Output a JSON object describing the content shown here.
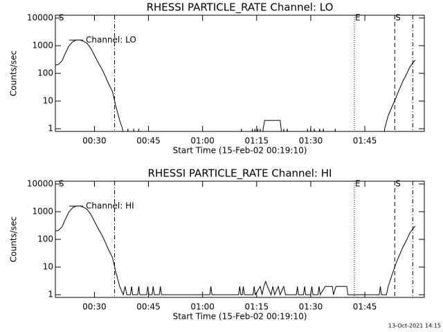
{
  "chart_data": [
    {
      "type": "line",
      "title": "RHESSI PARTICLE_RATE Channel: LO",
      "xlabel": "Start Time (15-Feb-02 00:19:10)",
      "ylabel": "Counts/sec",
      "log_y": true,
      "legend": "upper-left",
      "xlim": [
        19.17,
        121.5
      ],
      "ylim": [
        0.8,
        12600
      ],
      "xticks": [
        {
          "value": 30,
          "label": "00:30"
        },
        {
          "value": 45,
          "label": "00:45"
        },
        {
          "value": 60,
          "label": "01:00"
        },
        {
          "value": 75,
          "label": "01:15"
        },
        {
          "value": 90,
          "label": "01:30"
        },
        {
          "value": 105,
          "label": "01:45"
        }
      ],
      "yticks": [
        1,
        10,
        100,
        1000,
        10000
      ],
      "markers": [
        {
          "x": 19.9,
          "label": "S"
        },
        {
          "x": 35.6,
          "style": "dashdot"
        },
        {
          "x": 102.1,
          "style": "dotted",
          "label": "E"
        },
        {
          "x": 113.3,
          "style": "dashed",
          "label": "S"
        },
        {
          "x": 118.3,
          "style": "dashdot"
        }
      ],
      "x": [
        19.17,
        20,
        21,
        22,
        23,
        24,
        25,
        26,
        27,
        28,
        29,
        30,
        31,
        32,
        33,
        34,
        35,
        36,
        37,
        37.8,
        38.3,
        39,
        39.3,
        39.6,
        40.6,
        40.9,
        41.2,
        42,
        42.3,
        42.6,
        70.5,
        70.8,
        71.1,
        73.5,
        73.8,
        74.1,
        74.5,
        74.8,
        75.3,
        75.6,
        76,
        76.3,
        76.8,
        77.2,
        81.5,
        81.8,
        82.1,
        82.5,
        82.8,
        83.5,
        83.8,
        88.8,
        89.1,
        89.4,
        90,
        90.3,
        91,
        91.3,
        92.5,
        92.8,
        93.5,
        93.8,
        96.5,
        96.8,
        97.1,
        110.2,
        110.5,
        111.5,
        112.5,
        113.5,
        114.5,
        115.5,
        116.5,
        117.5,
        118.5,
        119
      ],
      "series": [
        {
          "name": "Channel: LO",
          "color": "#000000",
          "values": [
            200,
            210,
            280,
            550,
            1000,
            1400,
            1600,
            1600,
            1450,
            1200,
            800,
            450,
            250,
            150,
            80,
            40,
            22,
            6,
            2,
            1,
            0,
            0,
            1,
            0,
            0,
            1,
            0,
            0,
            1,
            0,
            0,
            1,
            0,
            0,
            1,
            0,
            1,
            0,
            1,
            0,
            1,
            0,
            1,
            2,
            2,
            1,
            0,
            1,
            0,
            1,
            0,
            0,
            1,
            0,
            1,
            0,
            1,
            0,
            1,
            0,
            1,
            0,
            0,
            1,
            0,
            0,
            1,
            3,
            6,
            12,
            25,
            50,
            90,
            170,
            260,
            300
          ]
        }
      ]
    },
    {
      "type": "line",
      "title": "RHESSI PARTICLE_RATE Channel: HI",
      "xlabel": "Start Time (15-Feb-02 00:19:10)",
      "ylabel": "Counts/sec",
      "log_y": true,
      "legend": "upper-left",
      "xlim": [
        19.17,
        121.5
      ],
      "ylim": [
        0.8,
        12600
      ],
      "xticks": [
        {
          "value": 30,
          "label": "00:30"
        },
        {
          "value": 45,
          "label": "00:45"
        },
        {
          "value": 60,
          "label": "01:00"
        },
        {
          "value": 75,
          "label": "01:15"
        },
        {
          "value": 90,
          "label": "01:30"
        },
        {
          "value": 105,
          "label": "01:45"
        }
      ],
      "yticks": [
        1,
        10,
        100,
        1000,
        10000
      ],
      "markers": [
        {
          "x": 19.9,
          "label": "S"
        },
        {
          "x": 35.6,
          "style": "dashdot"
        },
        {
          "x": 102.1,
          "style": "dotted",
          "label": "E"
        },
        {
          "x": 113.3,
          "style": "dashed",
          "label": "S"
        },
        {
          "x": 118.3,
          "style": "dashdot"
        }
      ],
      "x": [
        19.17,
        20,
        21,
        22,
        23,
        24,
        25,
        26,
        27,
        28,
        29,
        30,
        31,
        32,
        33,
        34,
        35,
        36,
        37,
        38,
        38.5,
        39,
        40,
        40.3,
        40.6,
        42,
        42.3,
        42.6,
        44.5,
        44.8,
        45.1,
        46,
        46.3,
        46.6,
        48,
        48.3,
        48.6,
        62,
        62.3,
        62.6,
        70,
        70.3,
        70.6,
        71,
        71.3,
        71.6,
        74,
        74.3,
        74.6,
        76,
        76.5,
        77,
        77.5,
        78,
        79,
        79.5,
        80,
        81,
        81.5,
        82.5,
        83,
        86,
        86.3,
        86.6,
        88,
        88.3,
        88.6,
        90,
        90.3,
        90.6,
        92,
        92.3,
        92.6,
        94,
        96,
        96.3,
        97,
        100,
        100.3,
        109,
        109.3,
        109.6,
        111,
        111.5,
        112.5,
        113.5,
        114.5,
        115.5,
        116.5,
        117.5,
        118.5,
        119
      ],
      "series": [
        {
          "name": "Channel: HI",
          "color": "#000000",
          "values": [
            200,
            210,
            280,
            550,
            1000,
            1400,
            1600,
            1600,
            1450,
            1200,
            800,
            450,
            250,
            150,
            80,
            40,
            22,
            6,
            2,
            1,
            2,
            1,
            1,
            2,
            1,
            1,
            2,
            1,
            1,
            2,
            1,
            1,
            2,
            1,
            1,
            2,
            1,
            1,
            2,
            1,
            1,
            2,
            1,
            1,
            2,
            1,
            1,
            2,
            1,
            2,
            1,
            2,
            3,
            2,
            1,
            2,
            1,
            2,
            1,
            2,
            1,
            1,
            2,
            1,
            1,
            2,
            1,
            1,
            2,
            1,
            1,
            2,
            1,
            2,
            2,
            1,
            2,
            2,
            1,
            1,
            2,
            1,
            1,
            2,
            5,
            12,
            25,
            50,
            90,
            170,
            260,
            300
          ]
        }
      ]
    }
  ],
  "footer": "13-Oct-2021 14:15"
}
